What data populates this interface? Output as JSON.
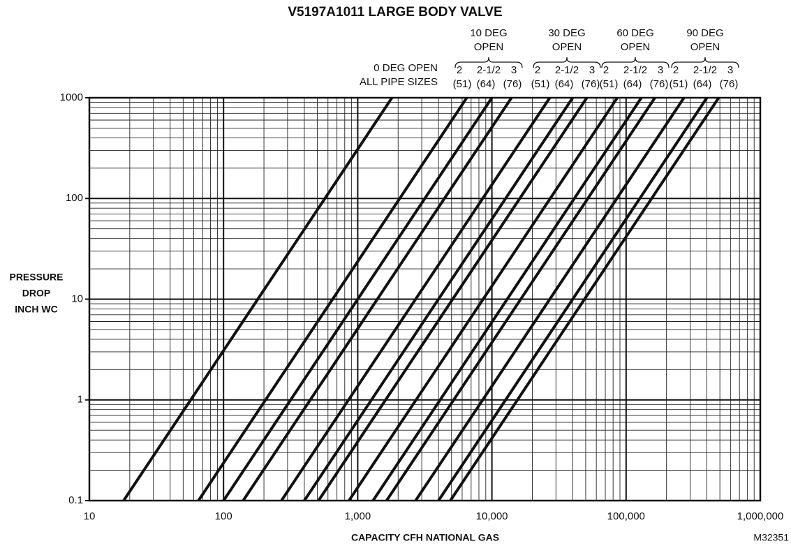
{
  "chart_data": {
    "type": "line",
    "title": "V5197A1011 LARGE BODY VALVE",
    "xlabel": "CAPACITY CFH NATIONAL GAS",
    "ylabel": [
      "PRESSURE",
      "DROP",
      "INCH WC"
    ],
    "code": "M32351",
    "xscale": "log",
    "yscale": "log",
    "grid": true,
    "minor_grid": true,
    "xlim": [
      10,
      1000000
    ],
    "ylim": [
      0.1,
      1000
    ],
    "xticks": [
      10,
      100,
      {
        "value": 1000,
        "label": "1,000"
      },
      {
        "value": 10000,
        "label": "10,000"
      },
      {
        "value": 100000,
        "label": "100,000"
      },
      {
        "value": 1000000,
        "label": "1,000,000"
      }
    ],
    "yticks": [
      0.1,
      1,
      10,
      100,
      1000
    ],
    "color": "#111111",
    "zero_label": [
      "0 DEG OPEN",
      "ALL PIPE SIZES"
    ],
    "groups": [
      {
        "label": [
          "10 DEG",
          "OPEN"
        ],
        "sizes": [
          "2",
          "2-1/2",
          "3"
        ],
        "metric": [
          "(51)",
          "(64)",
          "(76)"
        ]
      },
      {
        "label": [
          "30 DEG",
          "OPEN"
        ],
        "sizes": [
          "2",
          "2-1/2",
          "3"
        ],
        "metric": [
          "(51)",
          "(64)",
          "(76)"
        ]
      },
      {
        "label": [
          "60 DEG",
          "OPEN"
        ],
        "sizes": [
          "2",
          "2-1/2",
          "3"
        ],
        "metric": [
          "(51)",
          "(64)",
          "(76)"
        ]
      },
      {
        "label": [
          "90 DEG",
          "OPEN"
        ],
        "sizes": [
          "2",
          "2-1/2",
          "3"
        ],
        "metric": [
          "(51)",
          "(64)",
          "(76)"
        ]
      }
    ],
    "series": [
      {
        "x": [
          18,
          1800
        ],
        "values": [
          0.1,
          1000
        ]
      },
      {
        "x": [
          65,
          6500
        ],
        "values": [
          0.1,
          1000
        ]
      },
      {
        "x": [
          100,
          10000
        ],
        "values": [
          0.1,
          1000
        ]
      },
      {
        "x": [
          140,
          14000
        ],
        "values": [
          0.1,
          1000
        ]
      },
      {
        "x": [
          270,
          27000
        ],
        "values": [
          0.1,
          1000
        ]
      },
      {
        "x": [
          400,
          40000
        ],
        "values": [
          0.1,
          1000
        ]
      },
      {
        "x": [
          510,
          51000
        ],
        "values": [
          0.1,
          1000
        ]
      },
      {
        "x": [
          860,
          86000
        ],
        "values": [
          0.1,
          1000
        ]
      },
      {
        "x": [
          1300,
          130000
        ],
        "values": [
          0.1,
          1000
        ]
      },
      {
        "x": [
          1640,
          164000
        ],
        "values": [
          0.1,
          1000
        ]
      },
      {
        "x": [
          2700,
          270000
        ],
        "values": [
          0.1,
          1000
        ]
      },
      {
        "x": [
          4000,
          400000
        ],
        "values": [
          0.1,
          1000
        ]
      },
      {
        "x": [
          4900,
          490000
        ],
        "values": [
          0.1,
          1000
        ]
      }
    ]
  }
}
